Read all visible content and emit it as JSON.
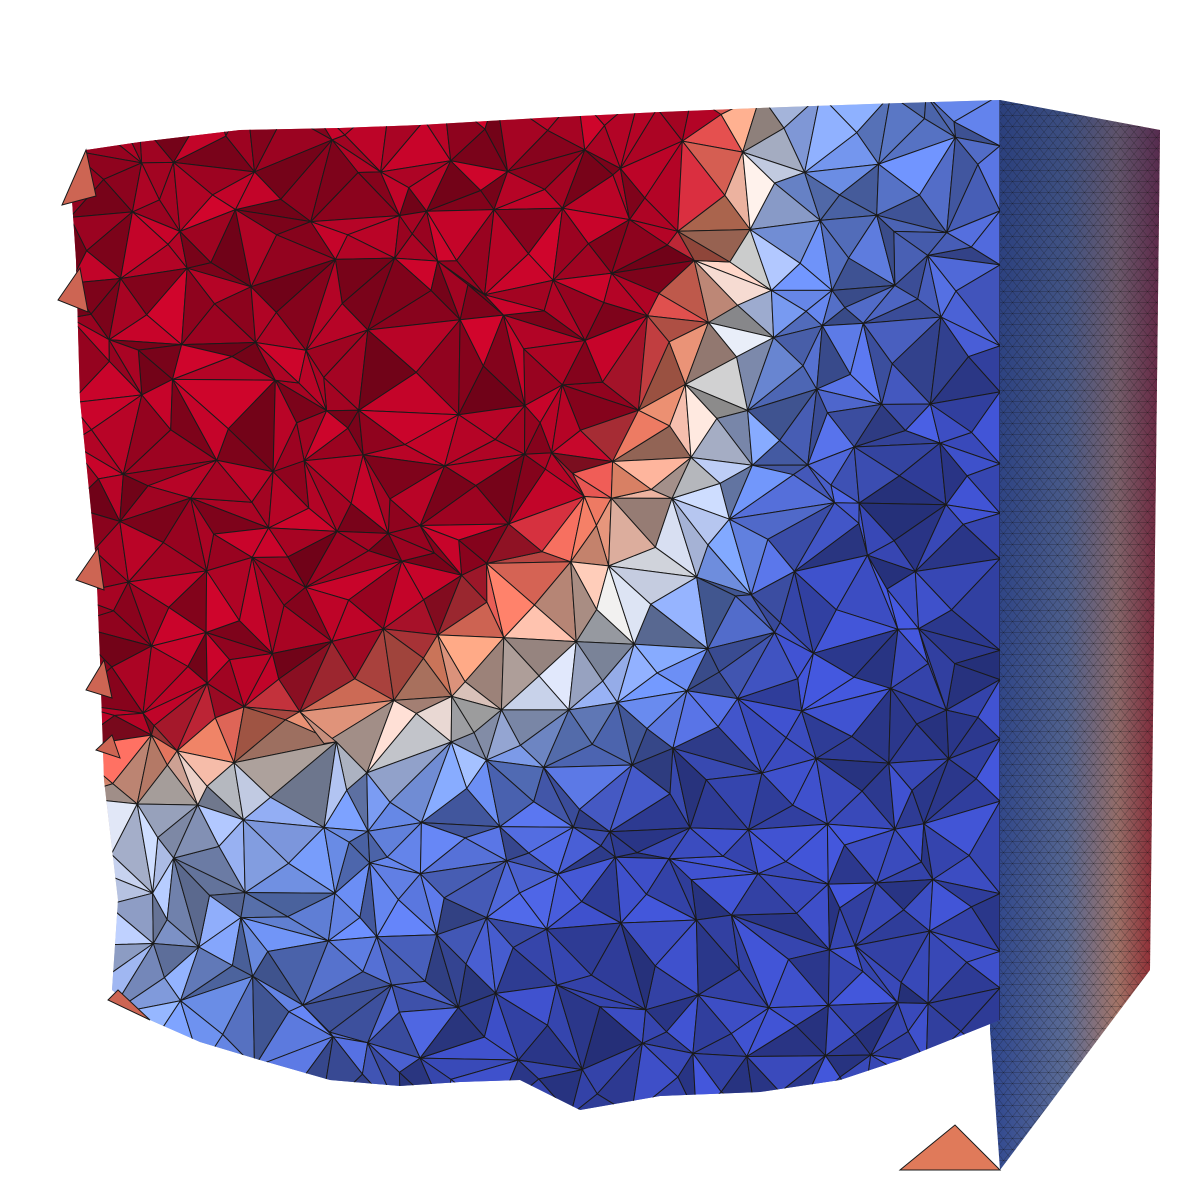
{
  "scene": {
    "background": "#ffffff",
    "edge_color": "#1a1a1a",
    "colormap": [
      "#3b4cc0",
      "#6b8ee8",
      "#dddddd",
      "#f08b6a",
      "#b40426"
    ]
  }
}
